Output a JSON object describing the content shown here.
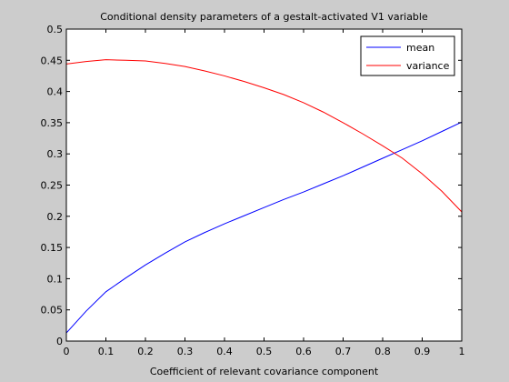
{
  "chart_data": {
    "type": "line",
    "title": "Conditional density parameters of a gestalt-activated V1 variable",
    "xlabel": "Coefficient of relevant covariance component",
    "ylabel": "",
    "xlim": [
      0,
      1
    ],
    "ylim": [
      0,
      0.5
    ],
    "xticks": [
      0,
      0.1,
      0.2,
      0.3,
      0.4,
      0.5,
      0.6,
      0.7,
      0.8,
      0.9,
      1
    ],
    "xtick_labels": [
      "0",
      "0.1",
      "0.2",
      "0.3",
      "0.4",
      "0.5",
      "0.6",
      "0.7",
      "0.8",
      "0.9",
      "1"
    ],
    "yticks": [
      0,
      0.05,
      0.1,
      0.15,
      0.2,
      0.25,
      0.3,
      0.35,
      0.4,
      0.45,
      0.5
    ],
    "ytick_labels": [
      "0",
      "0.05",
      "0.1",
      "0.15",
      "0.2",
      "0.25",
      "0.3",
      "0.35",
      "0.4",
      "0.45",
      "0.5"
    ],
    "grid": false,
    "legend": "top-right",
    "series": [
      {
        "name": "mean",
        "color": "#0000ff",
        "x": [
          0,
          0.05,
          0.1,
          0.15,
          0.2,
          0.25,
          0.3,
          0.35,
          0.4,
          0.45,
          0.5,
          0.55,
          0.6,
          0.65,
          0.7,
          0.75,
          0.8,
          0.85,
          0.9,
          0.95,
          1
        ],
        "y": [
          0.013,
          0.048,
          0.079,
          0.101,
          0.122,
          0.141,
          0.159,
          0.174,
          0.188,
          0.201,
          0.214,
          0.227,
          0.239,
          0.252,
          0.265,
          0.279,
          0.293,
          0.307,
          0.321,
          0.336,
          0.351
        ]
      },
      {
        "name": "variance",
        "color": "#ff0000",
        "x": [
          0,
          0.05,
          0.1,
          0.15,
          0.2,
          0.25,
          0.3,
          0.35,
          0.4,
          0.45,
          0.5,
          0.55,
          0.6,
          0.65,
          0.7,
          0.75,
          0.8,
          0.85,
          0.9,
          0.95,
          1
        ],
        "y": [
          0.444,
          0.448,
          0.451,
          0.45,
          0.449,
          0.445,
          0.44,
          0.433,
          0.425,
          0.416,
          0.406,
          0.395,
          0.382,
          0.367,
          0.35,
          0.332,
          0.313,
          0.293,
          0.268,
          0.24,
          0.207
        ]
      }
    ]
  }
}
